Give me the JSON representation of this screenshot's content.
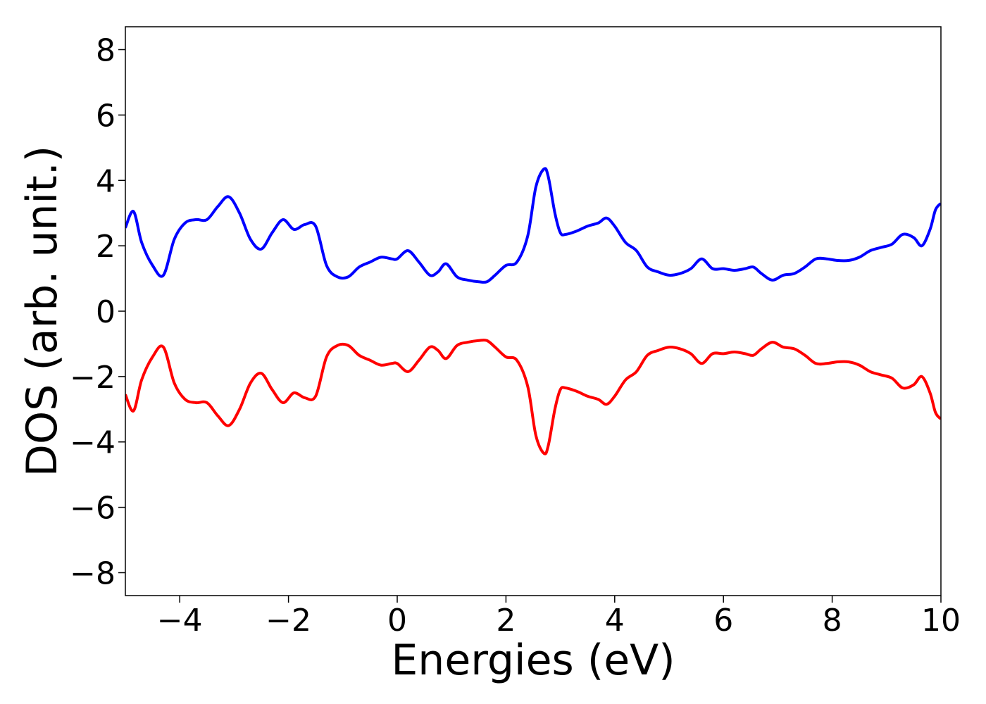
{
  "chart_data": {
    "type": "line",
    "title": "",
    "xlabel": "Energies (eV)",
    "ylabel": "DOS (arb. unit.)",
    "xlim": [
      -5,
      10
    ],
    "ylim": [
      -8.7,
      8.7
    ],
    "grid": false,
    "legend": "none",
    "x_ticks": [
      {
        "value": -4,
        "label": "−4"
      },
      {
        "value": -2,
        "label": "−2"
      },
      {
        "value": 0,
        "label": "0"
      },
      {
        "value": 2,
        "label": "2"
      },
      {
        "value": 4,
        "label": "4"
      },
      {
        "value": 6,
        "label": "6"
      },
      {
        "value": 8,
        "label": "8"
      },
      {
        "value": 10,
        "label": "10"
      }
    ],
    "y_ticks": [
      {
        "value": -8,
        "label": "−8"
      },
      {
        "value": -6,
        "label": "−6"
      },
      {
        "value": -4,
        "label": "−4"
      },
      {
        "value": -2,
        "label": "−2"
      },
      {
        "value": 0,
        "label": "0"
      },
      {
        "value": 2,
        "label": "2"
      },
      {
        "value": 4,
        "label": "4"
      },
      {
        "value": 6,
        "label": "6"
      },
      {
        "value": 8,
        "label": "8"
      }
    ],
    "series": [
      {
        "color": "#0000ff",
        "x": [
          -5.0,
          -4.85,
          -4.7,
          -4.5,
          -4.3,
          -4.1,
          -3.9,
          -3.7,
          -3.5,
          -3.3,
          -3.1,
          -2.9,
          -2.7,
          -2.5,
          -2.3,
          -2.1,
          -1.9,
          -1.7,
          -1.5,
          -1.3,
          -1.1,
          -0.9,
          -0.7,
          -0.5,
          -0.3,
          -0.1,
          0.0,
          0.2,
          0.4,
          0.6,
          0.75,
          0.9,
          1.1,
          1.3,
          1.5,
          1.65,
          1.8,
          2.0,
          2.2,
          2.4,
          2.55,
          2.7,
          2.78,
          2.9,
          3.0,
          3.1,
          3.3,
          3.5,
          3.7,
          3.85,
          4.0,
          4.2,
          4.4,
          4.6,
          4.8,
          5.0,
          5.2,
          5.4,
          5.6,
          5.8,
          6.0,
          6.2,
          6.4,
          6.55,
          6.7,
          6.9,
          7.1,
          7.3,
          7.5,
          7.7,
          7.9,
          8.1,
          8.3,
          8.5,
          8.7,
          8.9,
          9.1,
          9.3,
          9.5,
          9.65,
          9.8,
          9.9,
          10.0
        ],
        "values": [
          2.55,
          3.05,
          2.1,
          1.4,
          1.1,
          2.2,
          2.7,
          2.8,
          2.8,
          3.2,
          3.5,
          3.0,
          2.2,
          1.9,
          2.4,
          2.8,
          2.5,
          2.65,
          2.6,
          1.4,
          1.05,
          1.05,
          1.35,
          1.5,
          1.65,
          1.6,
          1.6,
          1.85,
          1.5,
          1.1,
          1.2,
          1.45,
          1.05,
          0.95,
          0.9,
          0.9,
          1.1,
          1.4,
          1.5,
          2.3,
          3.8,
          4.35,
          4.1,
          3.0,
          2.4,
          2.35,
          2.45,
          2.6,
          2.7,
          2.85,
          2.6,
          2.1,
          1.85,
          1.35,
          1.2,
          1.1,
          1.15,
          1.3,
          1.6,
          1.3,
          1.3,
          1.25,
          1.3,
          1.35,
          1.15,
          0.95,
          1.1,
          1.15,
          1.35,
          1.6,
          1.6,
          1.55,
          1.55,
          1.65,
          1.85,
          1.95,
          2.05,
          2.35,
          2.25,
          2.0,
          2.5,
          3.1,
          3.3
        ]
      },
      {
        "color": "#ff0000",
        "x": [
          -5.0,
          -4.85,
          -4.7,
          -4.5,
          -4.3,
          -4.1,
          -3.9,
          -3.7,
          -3.5,
          -3.3,
          -3.1,
          -2.9,
          -2.7,
          -2.5,
          -2.3,
          -2.1,
          -1.9,
          -1.7,
          -1.5,
          -1.3,
          -1.1,
          -0.9,
          -0.7,
          -0.5,
          -0.3,
          -0.1,
          0.0,
          0.2,
          0.4,
          0.6,
          0.75,
          0.9,
          1.1,
          1.3,
          1.5,
          1.65,
          1.8,
          2.0,
          2.2,
          2.4,
          2.55,
          2.7,
          2.78,
          2.9,
          3.0,
          3.1,
          3.3,
          3.5,
          3.7,
          3.85,
          4.0,
          4.2,
          4.4,
          4.6,
          4.8,
          5.0,
          5.2,
          5.4,
          5.6,
          5.8,
          6.0,
          6.2,
          6.4,
          6.55,
          6.7,
          6.9,
          7.1,
          7.3,
          7.5,
          7.7,
          7.9,
          8.1,
          8.3,
          8.5,
          8.7,
          8.9,
          9.1,
          9.3,
          9.5,
          9.65,
          9.8,
          9.9,
          10.0
        ],
        "values": [
          -2.55,
          -3.05,
          -2.1,
          -1.4,
          -1.1,
          -2.2,
          -2.7,
          -2.8,
          -2.8,
          -3.2,
          -3.5,
          -3.0,
          -2.2,
          -1.9,
          -2.4,
          -2.8,
          -2.5,
          -2.65,
          -2.6,
          -1.4,
          -1.05,
          -1.05,
          -1.35,
          -1.5,
          -1.65,
          -1.6,
          -1.6,
          -1.85,
          -1.5,
          -1.1,
          -1.2,
          -1.45,
          -1.05,
          -0.95,
          -0.9,
          -0.9,
          -1.1,
          -1.4,
          -1.5,
          -2.3,
          -3.8,
          -4.35,
          -4.1,
          -3.0,
          -2.4,
          -2.35,
          -2.45,
          -2.6,
          -2.7,
          -2.85,
          -2.6,
          -2.1,
          -1.85,
          -1.35,
          -1.2,
          -1.1,
          -1.15,
          -1.3,
          -1.6,
          -1.3,
          -1.3,
          -1.25,
          -1.3,
          -1.35,
          -1.15,
          -0.95,
          -1.1,
          -1.15,
          -1.35,
          -1.6,
          -1.6,
          -1.55,
          -1.55,
          -1.65,
          -1.85,
          -1.95,
          -2.05,
          -2.35,
          -2.25,
          -2.0,
          -2.5,
          -3.1,
          -3.3
        ]
      }
    ]
  }
}
